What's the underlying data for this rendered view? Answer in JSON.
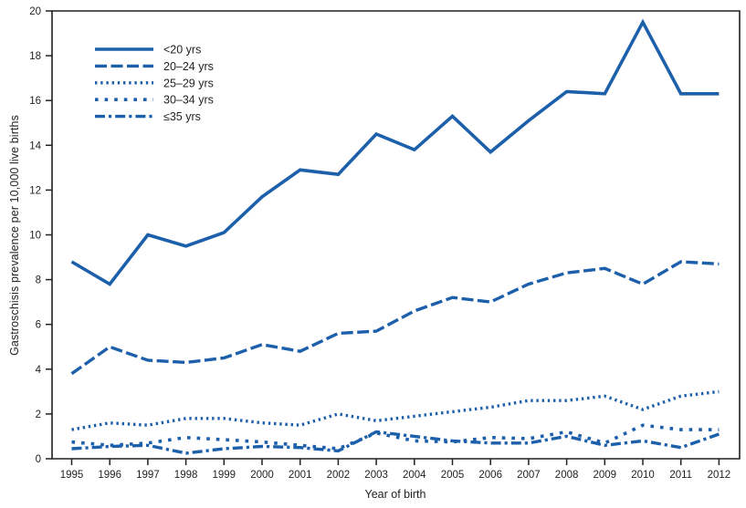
{
  "colors": {
    "line_blue": "#1C5FAA",
    "axis_black": "#231F20",
    "background": "#FFFFFF"
  },
  "chart_data": {
    "type": "line",
    "title": "",
    "xlabel": "Year of birth",
    "ylabel": "Gastroschisis prevalence per 10,000 live births",
    "x": [
      1995,
      1996,
      1997,
      1998,
      1999,
      2000,
      2001,
      2002,
      2003,
      2004,
      2005,
      2006,
      2007,
      2008,
      2009,
      2010,
      2011,
      2012
    ],
    "ylim": [
      0,
      20
    ],
    "ytick_step": 2,
    "grid": false,
    "legend_position": "top-left-inside",
    "line_color": "#1C5FAA",
    "series": [
      {
        "name": "<20 yrs",
        "dash": "solid",
        "values": [
          8.8,
          7.8,
          10.0,
          9.5,
          10.1,
          11.7,
          12.9,
          12.7,
          14.5,
          13.8,
          15.3,
          13.7,
          15.1,
          16.4,
          16.3,
          19.5,
          16.3,
          16.3
        ]
      },
      {
        "name": "20–24 yrs",
        "dash": "dashed",
        "values": [
          3.8,
          5.0,
          4.4,
          4.3,
          4.5,
          5.1,
          4.8,
          5.6,
          5.7,
          6.6,
          7.2,
          7.0,
          7.8,
          8.3,
          8.5,
          7.8,
          8.8,
          8.7
        ]
      },
      {
        "name": "25–29 yrs",
        "dash": "dotted",
        "values": [
          1.3,
          1.6,
          1.5,
          1.8,
          1.8,
          1.6,
          1.5,
          2.0,
          1.7,
          1.9,
          2.1,
          2.3,
          2.6,
          2.6,
          2.8,
          2.2,
          2.8,
          3.0
        ]
      },
      {
        "name": "30–34 yrs",
        "dash": "sparse-dotted",
        "values": [
          0.75,
          0.6,
          0.7,
          0.95,
          0.85,
          0.75,
          0.6,
          0.45,
          1.15,
          0.8,
          0.75,
          0.95,
          0.9,
          1.2,
          0.7,
          1.5,
          1.3,
          1.3
        ]
      },
      {
        "name": "≤35 yrs",
        "dash": "dash-dot",
        "values": [
          0.45,
          0.55,
          0.6,
          0.25,
          0.45,
          0.55,
          0.5,
          0.35,
          1.2,
          1.0,
          0.8,
          0.7,
          0.7,
          1.0,
          0.6,
          0.8,
          0.5,
          1.1
        ]
      }
    ]
  }
}
